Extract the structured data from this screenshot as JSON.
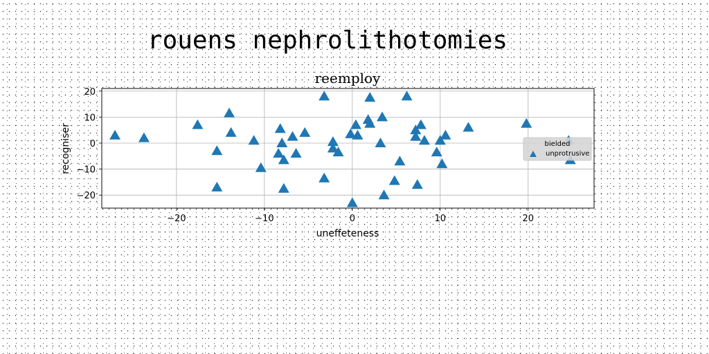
{
  "figure": {
    "suptitle": "rouens nephrolithotomies"
  },
  "chart_data": {
    "type": "scatter",
    "title": "reemploy",
    "xlabel": "uneffeteness",
    "ylabel": "recogniser",
    "xlim": [
      -28.5,
      27.5
    ],
    "ylim": [
      -25,
      21
    ],
    "xticks": [
      -20,
      -10,
      0,
      10,
      20
    ],
    "yticks": [
      -20,
      -10,
      0,
      10,
      20
    ],
    "grid": true,
    "legend": {
      "title": "bielded",
      "placement": "center-right"
    },
    "series": [
      {
        "name": "unprotrusive",
        "marker": "triangle",
        "color": "#1f77b4",
        "points": [
          [
            -27,
            3
          ],
          [
            -23.7,
            2
          ],
          [
            -17.6,
            7
          ],
          [
            -15.4,
            -3
          ],
          [
            -15.4,
            -17
          ],
          [
            -14,
            11.5
          ],
          [
            -13.8,
            4
          ],
          [
            -11.2,
            1
          ],
          [
            -10.4,
            -9.5
          ],
          [
            -8.4,
            -4
          ],
          [
            -8.2,
            5.5
          ],
          [
            -8,
            0
          ],
          [
            -7.8,
            -6.5
          ],
          [
            -7.8,
            -17.5
          ],
          [
            -6.8,
            2.5
          ],
          [
            -6.4,
            -4
          ],
          [
            -5.4,
            4
          ],
          [
            -3.2,
            18
          ],
          [
            -3.2,
            -13.5
          ],
          [
            -2.2,
            0.5
          ],
          [
            -2.2,
            -2
          ],
          [
            -1.6,
            -3.5
          ],
          [
            -0.2,
            3.5
          ],
          [
            0,
            -23
          ],
          [
            0.4,
            7
          ],
          [
            0.6,
            3
          ],
          [
            1.8,
            9
          ],
          [
            2,
            17.5
          ],
          [
            2,
            7.5
          ],
          [
            3.2,
            0
          ],
          [
            3.4,
            10
          ],
          [
            3.6,
            -20
          ],
          [
            4.8,
            -14.5
          ],
          [
            5.4,
            -7
          ],
          [
            6.2,
            18
          ],
          [
            7.2,
            5
          ],
          [
            7.2,
            2.5
          ],
          [
            7.4,
            -16
          ],
          [
            7.8,
            7
          ],
          [
            8.2,
            1
          ],
          [
            9.6,
            -3.5
          ],
          [
            10,
            1
          ],
          [
            10.2,
            -8
          ],
          [
            10.6,
            3
          ],
          [
            13.2,
            6
          ],
          [
            19.8,
            7.5
          ],
          [
            24.6,
            1
          ],
          [
            24.8,
            -6.5
          ]
        ]
      }
    ]
  }
}
